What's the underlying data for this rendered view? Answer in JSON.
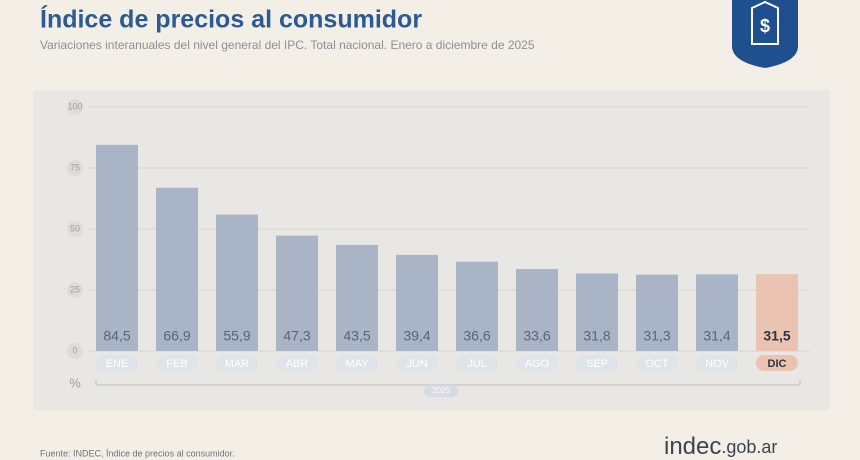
{
  "chart_data": {
    "type": "bar",
    "title": "Índice de precios al consumidor",
    "subtitle": "Variaciones interanuales del nivel general del IPC. Total nacional. Enero a diciembre de 2025",
    "categories": [
      "ENE",
      "FEB",
      "MAR",
      "ABR",
      "MAY",
      "JUN",
      "JUL",
      "AGO",
      "SEP",
      "OCT",
      "NOV",
      "DIC"
    ],
    "values": [
      84.5,
      66.9,
      55.9,
      47.3,
      43.5,
      39.4,
      36.6,
      33.6,
      31.8,
      31.3,
      31.4,
      31.5
    ],
    "value_labels": [
      "84,5",
      "66,9",
      "55,9",
      "47,3",
      "43,5",
      "39,4",
      "36,6",
      "33,6",
      "31,8",
      "31,3",
      "31,4",
      "31,5"
    ],
    "colors": [
      "#a9b4c6",
      "#a9b4c6",
      "#a9b4c6",
      "#a9b4c6",
      "#a9b4c6",
      "#a9b4c6",
      "#a9b4c6",
      "#a9b4c6",
      "#a9b4c6",
      "#a9b4c6",
      "#a9b4c6",
      "#ebc3b2"
    ],
    "ylim": [
      0,
      100
    ],
    "yticks": [
      0,
      25,
      50,
      75,
      100
    ],
    "grid": true,
    "y_unit": "%",
    "x_group_label": "2025",
    "source": "Fuente: INDEC, Índice de precios al consumidor.",
    "brand_name": "indec",
    "brand_domain": ".gob.ar"
  }
}
